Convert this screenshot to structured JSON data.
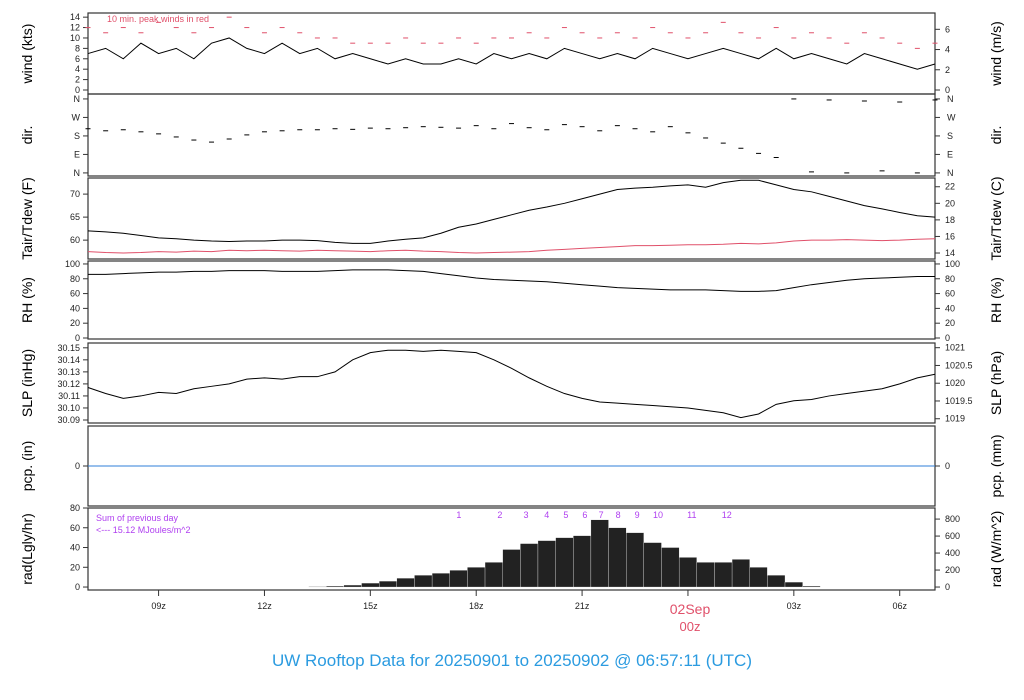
{
  "title": "UW Rooftop Data for 20250901  to  20250902 @ 06:57:11  (UTC)",
  "date_marker": {
    "date": "02Sep",
    "hour": "00z",
    "t": 24
  },
  "colors": {
    "title": "#2b9be0",
    "peak": "#e0506a",
    "dew": "#e0506a",
    "precip": "#2f7fd8",
    "annot": "#b040f0",
    "line": "#000000",
    "date": "#e0506a"
  },
  "chart_data": {
    "type": "line",
    "x_unit": "hours UTC since 20250901 00z",
    "xlim": [
      7,
      31
    ],
    "x_ticks": [
      {
        "t": 9,
        "label": "09z"
      },
      {
        "t": 12,
        "label": "12z"
      },
      {
        "t": 15,
        "label": "15z"
      },
      {
        "t": 18,
        "label": "18z"
      },
      {
        "t": 21,
        "label": "21z"
      },
      {
        "t": 24,
        "label": ""
      },
      {
        "t": 27,
        "label": "03z"
      },
      {
        "t": 30,
        "label": "06z"
      }
    ],
    "t_start": 7,
    "t_step": 0.5,
    "panels": [
      {
        "id": "wind",
        "ylabel": "wind (kts)",
        "ylabel_right": "wind (m/s)",
        "ylim": [
          -0.77,
          14.8
        ],
        "ticks_left": [
          0,
          2,
          4,
          6,
          8,
          10,
          12,
          14
        ],
        "ticks_right": [
          0,
          2,
          4,
          6
        ],
        "right_factor": 0.5144,
        "annotation": "10 min. peak winds in red",
        "series": [
          {
            "name": "wind",
            "style": "line",
            "values": [
              7,
              8,
              6,
              9,
              7,
              8,
              6,
              9,
              10,
              8,
              7,
              9,
              7,
              8,
              6,
              7,
              6,
              5,
              6,
              5,
              5,
              6,
              5,
              7,
              6,
              7,
              6,
              8,
              7,
              6,
              7,
              6,
              8,
              7,
              6,
              7,
              8,
              7,
              6,
              8,
              6,
              7,
              6,
              5,
              7,
              6,
              5,
              4,
              5
            ]
          },
          {
            "name": "peak wind",
            "style": "dash",
            "color": "peak",
            "values": [
              12,
              11,
              12,
              11,
              13,
              12,
              11,
              12,
              14,
              12,
              11,
              12,
              11,
              10,
              10,
              9,
              9,
              9,
              10,
              9,
              9,
              10,
              9,
              10,
              10,
              11,
              10,
              12,
              11,
              10,
              11,
              10,
              12,
              11,
              10,
              11,
              13,
              11,
              10,
              12,
              10,
              11,
              10,
              9,
              11,
              10,
              9,
              8,
              9
            ]
          }
        ]
      },
      {
        "id": "dir",
        "ylabel": "dir.",
        "ylabel_right": "dir.",
        "ylim": [
          -15,
          384
        ],
        "ticks_left_labeled": [
          {
            "v": 0,
            "label": "N"
          },
          {
            "v": 90,
            "label": "E"
          },
          {
            "v": 180,
            "label": "S"
          },
          {
            "v": 270,
            "label": "W"
          },
          {
            "v": 360,
            "label": "N"
          }
        ],
        "series": [
          {
            "name": "direction",
            "style": "dash",
            "values": [
              215,
              205,
              210,
              200,
              190,
              175,
              160,
              150,
              165,
              185,
              200,
              205,
              210,
              210,
              215,
              212,
              218,
              215,
              220,
              225,
              222,
              218,
              230,
              215,
              240,
              220,
              210,
              235,
              225,
              205,
              230,
              215,
              200,
              225,
              195,
              170,
              145,
              120,
              95,
              75,
              360,
              5,
              355,
              0,
              350,
              10,
              345,
              0,
              355
            ]
          }
        ]
      },
      {
        "id": "temp",
        "ylabel": "Tair/Tdew (F)",
        "ylabel_right": "Tair/Tdew (C)",
        "ylim": [
          55.9,
          73.5
        ],
        "ticks_left": [
          60,
          65,
          70
        ],
        "ticks_right": [
          14,
          16,
          18,
          20,
          22
        ],
        "right_conv": "C",
        "series": [
          {
            "name": "Tair",
            "style": "line",
            "values": [
              62,
              61.8,
              61.5,
              61,
              60.5,
              60.3,
              60,
              59.8,
              59.7,
              59.8,
              59.8,
              60,
              60,
              59.9,
              59.5,
              59.3,
              59.3,
              59.8,
              60.2,
              60.5,
              61.5,
              62.8,
              63.5,
              64.5,
              65.5,
              66.5,
              67.2,
              68,
              69,
              70,
              71,
              71.3,
              71.5,
              71.8,
              72,
              71.5,
              72.5,
              73,
              73,
              72,
              71,
              70.5,
              69.5,
              68.5,
              67.5,
              66.8,
              66,
              65.3,
              65
            ]
          },
          {
            "name": "Tdew",
            "style": "line",
            "color": "dew",
            "values": [
              57.5,
              57.3,
              57.2,
              57.3,
              57.5,
              57.4,
              57.6,
              57.5,
              57.8,
              57.7,
              57.8,
              57.7,
              57.6,
              57.8,
              57.7,
              57.6,
              57.5,
              57.7,
              57.8,
              57.6,
              57.5,
              57.3,
              57.2,
              57.3,
              57.4,
              57.5,
              57.8,
              58,
              58.2,
              58.4,
              58.6,
              58.8,
              58.8,
              58.9,
              59,
              59,
              59.1,
              59.3,
              59.2,
              59.4,
              59.8,
              60,
              60,
              60.1,
              60,
              59.9,
              60,
              60.2,
              60.3
            ]
          }
        ]
      },
      {
        "id": "rh",
        "ylabel": "RH (%)",
        "ylabel_right": "RH (%)",
        "ylim": [
          -1.35,
          104
        ],
        "ticks_left": [
          0,
          20,
          40,
          60,
          80,
          100
        ],
        "ticks_right": [
          0,
          20,
          40,
          60,
          80,
          100
        ],
        "right_factor": 1,
        "series": [
          {
            "name": "RH",
            "style": "line",
            "values": [
              86,
              86,
              87,
              88,
              89,
              89,
              90,
              90,
              91,
              91,
              91,
              90,
              90,
              90,
              91,
              92,
              92,
              92,
              91,
              90,
              87,
              84,
              81,
              79,
              78,
              77,
              76,
              74,
              72,
              70,
              68,
              67,
              66,
              65,
              65,
              65,
              64,
              63,
              63,
              64,
              68,
              72,
              75,
              78,
              80,
              81,
              82,
              83,
              83
            ]
          }
        ]
      },
      {
        "id": "slp",
        "ylabel": "SLP (inHg)",
        "ylabel_right": "SLP (hPa)",
        "ylim": [
          30.0875,
          30.154
        ],
        "ticks_left": [
          "30.09",
          "30.10",
          "30.11",
          "30.12",
          "30.13",
          "30.14",
          "30.15"
        ],
        "ticks_right": [
          "1019",
          "1019.5",
          "1020",
          "1020.5",
          "1021"
        ],
        "right_factor": 33.8639,
        "series": [
          {
            "name": "SLP",
            "style": "line",
            "values": [
              30.117,
              30.112,
              30.108,
              30.11,
              30.113,
              30.112,
              30.116,
              30.118,
              30.12,
              30.124,
              30.125,
              30.124,
              30.126,
              30.126,
              30.13,
              30.14,
              30.146,
              30.148,
              30.148,
              30.147,
              30.148,
              30.147,
              30.146,
              30.14,
              30.133,
              30.125,
              30.118,
              30.112,
              30.108,
              30.105,
              30.104,
              30.103,
              30.102,
              30.101,
              30.1,
              30.098,
              30.096,
              30.092,
              30.095,
              30.103,
              30.106,
              30.107,
              30.11,
              30.112,
              30.114,
              30.116,
              30.12,
              30.125,
              30.128
            ]
          }
        ]
      },
      {
        "id": "pcp",
        "ylabel": "pcp. (in)",
        "ylabel_right": "pcp. (mm)",
        "ylim": [
          -1,
          1
        ],
        "ticks_left": [
          0
        ],
        "ticks_right": [
          0
        ],
        "right_factor": 25.4,
        "series": [
          {
            "name": "precip",
            "style": "line",
            "color": "precip",
            "values": [
              0,
              0
            ]
          }
        ],
        "constant": true
      },
      {
        "id": "rad",
        "ylabel": "rad(Lgly/hr)",
        "ylabel_right": "rad (W/m^2)",
        "ylim": [
          -3,
          80
        ],
        "ticks_left": [
          0,
          20,
          40,
          60,
          80
        ],
        "ticks_right": [
          0,
          200,
          400,
          600,
          800
        ],
        "right_factor": 11.63,
        "annotation_lines": [
          "Sum of previous day",
          "<--- 15.12 MJoules/m^2"
        ],
        "hour_markers": [
          {
            "label": "1",
            "t": 17.51
          },
          {
            "label": "2",
            "t": 18.67
          },
          {
            "label": "3",
            "t": 19.41
          },
          {
            "label": "4",
            "t": 20.0
          },
          {
            "label": "5",
            "t": 20.54
          },
          {
            "label": "6",
            "t": 21.08
          },
          {
            "label": "7",
            "t": 21.54
          },
          {
            "label": "8",
            "t": 22.02
          },
          {
            "label": "9",
            "t": 22.56
          },
          {
            "label": "10",
            "t": 23.15
          },
          {
            "label": "11",
            "t": 24.11
          },
          {
            "label": "12",
            "t": 25.1
          }
        ],
        "series": [
          {
            "name": "radiation",
            "style": "bars",
            "values": [
              0,
              0,
              0,
              0,
              0,
              0,
              0,
              0,
              0,
              0,
              0,
              0,
              0,
              0.5,
              1,
              2,
              4,
              6,
              9,
              12,
              14,
              17,
              20,
              25,
              38,
              44,
              47,
              50,
              52,
              68,
              60,
              55,
              45,
              40,
              30,
              25,
              25,
              28,
              20,
              12,
              5,
              1,
              0,
              0,
              0,
              0,
              0,
              0,
              0
            ]
          }
        ]
      }
    ]
  }
}
